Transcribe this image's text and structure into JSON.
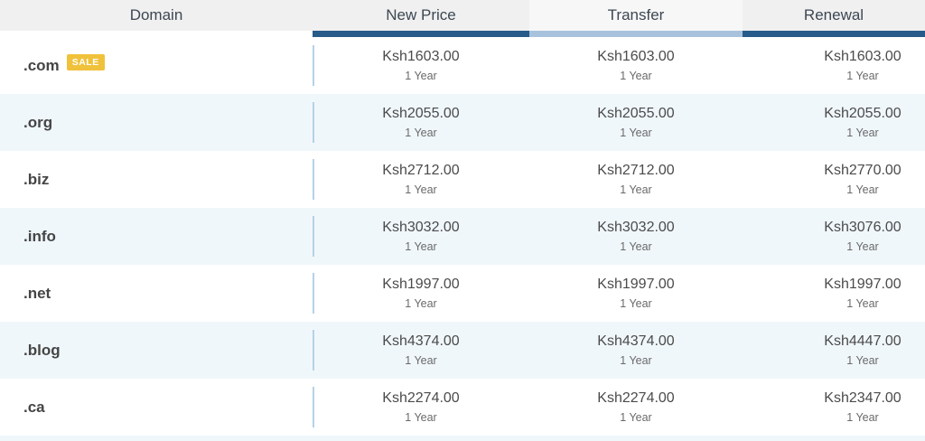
{
  "header": {
    "columns": [
      "Domain",
      "New Price",
      "Transfer",
      "Renewal"
    ]
  },
  "table": {
    "term_label": "1 Year",
    "rows": [
      {
        "domain": ".com",
        "badge": "SALE",
        "new_price": "Ksh1603.00",
        "transfer": "Ksh1603.00",
        "renewal": "Ksh1603.00"
      },
      {
        "domain": ".org",
        "new_price": "Ksh2055.00",
        "transfer": "Ksh2055.00",
        "renewal": "Ksh2055.00"
      },
      {
        "domain": ".biz",
        "new_price": "Ksh2712.00",
        "transfer": "Ksh2712.00",
        "renewal": "Ksh2770.00"
      },
      {
        "domain": ".info",
        "new_price": "Ksh3032.00",
        "transfer": "Ksh3032.00",
        "renewal": "Ksh3076.00"
      },
      {
        "domain": ".net",
        "new_price": "Ksh1997.00",
        "transfer": "Ksh1997.00",
        "renewal": "Ksh1997.00"
      },
      {
        "domain": ".blog",
        "new_price": "Ksh4374.00",
        "transfer": "Ksh4374.00",
        "renewal": "Ksh4447.00"
      },
      {
        "domain": ".ca",
        "new_price": "Ksh2274.00",
        "transfer": "Ksh2274.00",
        "renewal": "Ksh2347.00"
      }
    ]
  },
  "colors": {
    "accent_dark_blue": "#275b8a",
    "accent_light_blue": "#a8c2dd",
    "separator_blue": "#b5d2e8",
    "alt_row_bg": "#f0f7fb",
    "header_bg": "#f0f0f0",
    "sale_badge_bg": "#f0c13b"
  }
}
